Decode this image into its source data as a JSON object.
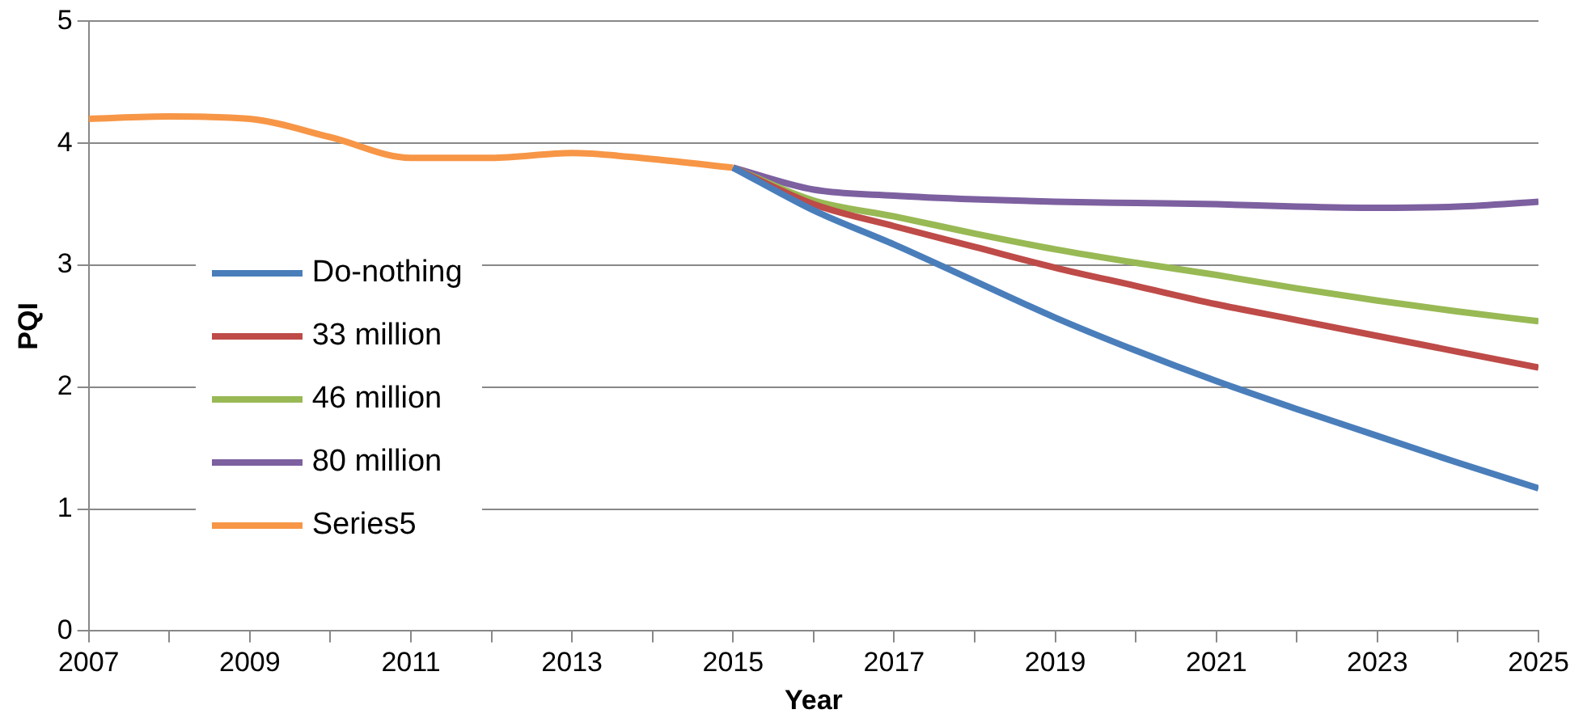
{
  "chart_data": {
    "type": "line",
    "xlabel": "Year",
    "ylabel": "PQI",
    "xlim": [
      2007,
      2025
    ],
    "xticks": [
      2007,
      {
        "value": 2008,
        "label": null
      },
      2009,
      {
        "value": 2010,
        "label": null
      },
      2011,
      {
        "value": 2012,
        "label": null
      },
      2013,
      {
        "value": 2014,
        "label": null
      },
      2015,
      {
        "value": 2016,
        "label": null
      },
      2017,
      {
        "value": 2018,
        "label": null
      },
      2019,
      {
        "value": 2020,
        "label": null
      },
      2021,
      {
        "value": 2022,
        "label": null
      },
      2023,
      {
        "value": 2024,
        "label": null
      },
      2025
    ],
    "ylim": [
      0,
      5
    ],
    "yticks": [
      0,
      1,
      2,
      3,
      4,
      5
    ],
    "grid": "y",
    "legend": "left",
    "marker": "none",
    "series": [
      {
        "name": "Do-nothing",
        "color": "#4a7ebb",
        "x": [
          2015,
          2016,
          2017,
          2018,
          2019,
          2020,
          2021,
          2022,
          2023,
          2024,
          2025
        ],
        "values": [
          3.8,
          3.45,
          3.17,
          2.87,
          2.57,
          2.3,
          2.05,
          1.82,
          1.6,
          1.38,
          1.17
        ]
      },
      {
        "name": "33 million",
        "color": "#be4b48",
        "x": [
          2015,
          2016,
          2017,
          2018,
          2019,
          2020,
          2021,
          2022,
          2023,
          2024,
          2025
        ],
        "values": [
          3.8,
          3.5,
          3.32,
          3.15,
          2.98,
          2.83,
          2.68,
          2.55,
          2.42,
          2.29,
          2.16
        ]
      },
      {
        "name": "46 million",
        "color": "#98b954",
        "x": [
          2015,
          2016,
          2017,
          2018,
          2019,
          2020,
          2021,
          2022,
          2023,
          2024,
          2025
        ],
        "values": [
          3.8,
          3.53,
          3.4,
          3.26,
          3.13,
          3.02,
          2.92,
          2.81,
          2.71,
          2.62,
          2.54
        ]
      },
      {
        "name": "80 million",
        "color": "#7d60a0",
        "x": [
          2015,
          2016,
          2017,
          2018,
          2019,
          2020,
          2021,
          2022,
          2023,
          2024,
          2025
        ],
        "values": [
          3.8,
          3.62,
          3.57,
          3.54,
          3.52,
          3.51,
          3.5,
          3.48,
          3.47,
          3.48,
          3.52
        ]
      },
      {
        "name": "Series5",
        "color": "#f79646",
        "x": [
          2007,
          2008,
          2009,
          2010,
          2011,
          2012,
          2013,
          2014,
          2015
        ],
        "values": [
          4.2,
          4.22,
          4.2,
          4.05,
          3.88,
          3.88,
          3.92,
          3.87,
          3.8
        ]
      }
    ]
  }
}
